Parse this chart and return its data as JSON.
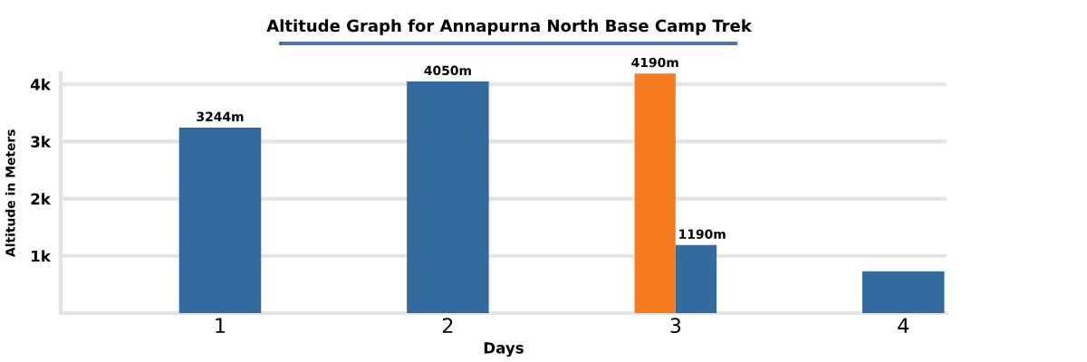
{
  "chart_data": {
    "type": "bar",
    "title": "Altitude Graph for Annapurna North Base Camp Trek",
    "xlabel": "Days",
    "ylabel": "Altitude in Meters",
    "categories": [
      "1",
      "2",
      "3",
      "4"
    ],
    "series": [
      {
        "color": "#f77b1f",
        "values": [
          null,
          null,
          4190,
          null
        ],
        "value_labels": [
          null,
          null,
          "4190m",
          null
        ]
      },
      {
        "color": "#336b9f",
        "values": [
          3244,
          4050,
          1190,
          730
        ],
        "value_labels": [
          "3244m",
          "4050m",
          "1190m",
          null
        ]
      }
    ],
    "ylim": [
      0,
      4200
    ],
    "yticks": [
      {
        "value": 1000,
        "label": "1k"
      },
      {
        "value": 2000,
        "label": "2k"
      },
      {
        "value": 3000,
        "label": "3k"
      },
      {
        "value": 4000,
        "label": "4k"
      }
    ],
    "grid": "y"
  }
}
